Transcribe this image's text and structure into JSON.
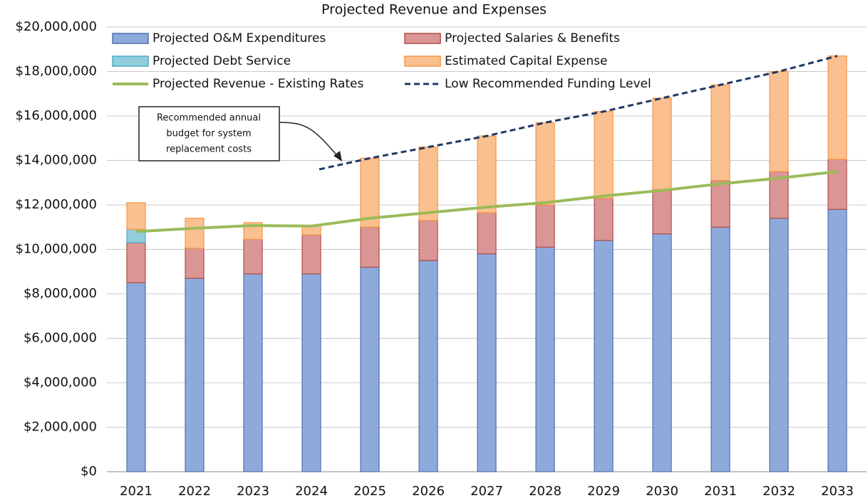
{
  "chart_data": {
    "type": "bar",
    "stacked": true,
    "title": "Projected Revenue and Expenses",
    "categories": [
      "2021",
      "2022",
      "2023",
      "2024",
      "2025",
      "2026",
      "2027",
      "2028",
      "2029",
      "2030",
      "2031",
      "2032",
      "2033"
    ],
    "series": [
      {
        "name": "Projected O&M Expenditures",
        "kind": "bar",
        "color": "#8eaadb",
        "stroke": "#4f6fad",
        "values": [
          8500000,
          8700000,
          8900000,
          8900000,
          9200000,
          9500000,
          9800000,
          10100000,
          10400000,
          10700000,
          11000000,
          11400000,
          11800000
        ]
      },
      {
        "name": "Projected Salaries & Benefits",
        "kind": "bar",
        "color": "#d99694",
        "stroke": "#b04d49",
        "values": [
          1800000,
          1350000,
          1550000,
          1750000,
          1800000,
          1800000,
          1850000,
          1900000,
          1900000,
          2000000,
          2100000,
          2100000,
          2250000
        ]
      },
      {
        "name": "Projected Debt Service",
        "kind": "bar",
        "color": "#92cddc",
        "stroke": "#4bacc6",
        "values": [
          600000,
          0,
          0,
          0,
          0,
          0,
          0,
          0,
          0,
          0,
          0,
          0,
          0
        ]
      },
      {
        "name": "Estimated Capital Expense",
        "kind": "bar",
        "color": "#fac090",
        "stroke": "#f79646",
        "values": [
          1200000,
          1350000,
          750000,
          400000,
          3100000,
          3300000,
          3450000,
          3700000,
          3900000,
          4100000,
          4300000,
          4500000,
          4650000
        ]
      },
      {
        "name": "Projected Revenue - Existing Rates",
        "kind": "line",
        "color": "#9bbb59",
        "dashed": false,
        "values": [
          10800000,
          10950000,
          11070000,
          11050000,
          11400000,
          11650000,
          11900000,
          12100000,
          12400000,
          12650000,
          12950000,
          13200000,
          13500000
        ]
      },
      {
        "name": "Low Recommended Funding Level",
        "kind": "line",
        "color": "#1f3864",
        "dashed": true,
        "values": [
          null,
          null,
          null,
          13600000,
          14100000,
          14600000,
          15100000,
          15700000,
          16200000,
          16800000,
          17400000,
          18000000,
          18700000
        ]
      }
    ],
    "ylim": [
      0,
      20000000
    ],
    "yticks": [
      {
        "value": 0,
        "label": "$0"
      },
      {
        "value": 2000000,
        "label": "$2,000,000"
      },
      {
        "value": 4000000,
        "label": "$4,000,000"
      },
      {
        "value": 6000000,
        "label": "$6,000,000"
      },
      {
        "value": 8000000,
        "label": "$8,000,000"
      },
      {
        "value": 10000000,
        "label": "$10,000,000"
      },
      {
        "value": 12000000,
        "label": "$12,000,000"
      },
      {
        "value": 14000000,
        "label": "$14,000,000"
      },
      {
        "value": 16000000,
        "label": "$16,000,000"
      },
      {
        "value": 18000000,
        "label": "$18,000,000"
      },
      {
        "value": 20000000,
        "label": "$20,000,000"
      }
    ],
    "grid": true,
    "legend": "top",
    "annotation": [
      "Recommended annual",
      "budget for system",
      "replacement costs"
    ]
  }
}
